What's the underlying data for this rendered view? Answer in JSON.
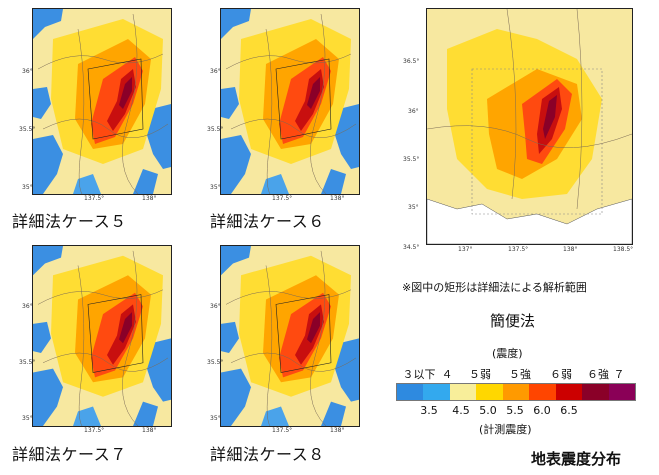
{
  "panels": [
    {
      "id": "case5",
      "label": "詳細法ケース５",
      "lat_ticks": [
        "36°",
        "35.5°",
        "35°"
      ],
      "lon_ticks": [
        "137.5°",
        "138°"
      ]
    },
    {
      "id": "case6",
      "label": "詳細法ケース６",
      "lat_ticks": [
        "36°",
        "35.5°",
        "35°"
      ],
      "lon_ticks": [
        "137.5°",
        "138°"
      ]
    },
    {
      "id": "case7",
      "label": "詳細法ケース７",
      "lat_ticks": [
        "36°",
        "35.5°",
        "35°"
      ],
      "lon_ticks": [
        "137.5°",
        "138°"
      ]
    },
    {
      "id": "case8",
      "label": "詳細法ケース８",
      "lat_ticks": [
        "36°",
        "35.5°",
        "35°"
      ],
      "lon_ticks": [
        "137.5°",
        "138°"
      ]
    }
  ],
  "overview": {
    "lat_ticks": [
      "36.5°",
      "36°",
      "35.5°",
      "35°",
      "34.5°"
    ],
    "lon_ticks": [
      "137°",
      "137.5°",
      "138°",
      "138.5°"
    ],
    "note": "※図中の矩形は詳細法による解析範囲",
    "title": "簡便法"
  },
  "legend": {
    "header": "(震度)",
    "intensity_labels": [
      "３以下",
      "４",
      "５弱",
      "５強",
      "６弱",
      "６強",
      "７"
    ],
    "bar_values": [
      "3.5",
      "4.5",
      "5.0",
      "5.5",
      "6.0",
      "6.5"
    ],
    "footer": "(計測震度)",
    "colors": [
      "#2e8ae0",
      "#33a9ee",
      "#f8ee9a",
      "#ffd700",
      "#ff9a00",
      "#ff4500",
      "#cc0000",
      "#8a0028",
      "#8a0057"
    ]
  },
  "footer_title": "地表震度分布"
}
